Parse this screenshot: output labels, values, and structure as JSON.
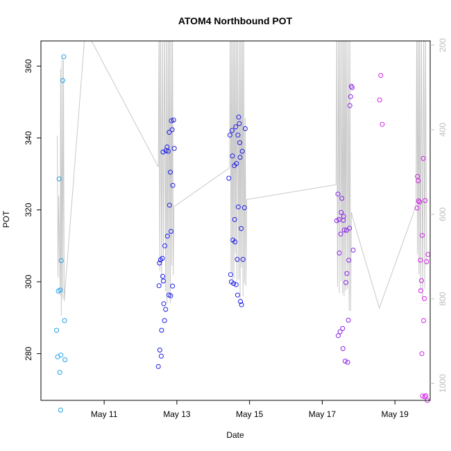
{
  "chart_data": {
    "type": "scatter",
    "title": "ATOM4 Northbound POT",
    "xlabel": "Date",
    "ylabel": "POT",
    "x_ticks": [
      "May 11",
      "May 13",
      "May 15",
      "May 17",
      "May 19"
    ],
    "y_ticks": [
      280,
      300,
      320,
      340,
      360
    ],
    "y2_ticks": [
      200,
      400,
      600,
      800,
      1000
    ],
    "xlim_days": [
      9.26,
      19.97
    ],
    "ylim": [
      267,
      367
    ],
    "y2lim": [
      1040,
      190
    ],
    "y2_reversed": true,
    "colors": {
      "cyan": "#1e9fe6",
      "blue": "#1a1ae6",
      "purple": "#8a22e6",
      "magenta": "#d21ee6",
      "line": "#c8c8c8"
    },
    "series": [
      {
        "color": "cyan",
        "points": [
          [
            9.69,
            286.5
          ],
          [
            9.72,
            279.1
          ],
          [
            9.74,
            297.4
          ],
          [
            9.76,
            328.6
          ],
          [
            9.78,
            274.8
          ],
          [
            9.8,
            264.3
          ],
          [
            9.81,
            279.6
          ],
          [
            9.82,
            305.9
          ],
          [
            9.79,
            297.7
          ],
          [
            9.86,
            356.0
          ],
          [
            9.89,
            362.6
          ],
          [
            9.91,
            289.2
          ],
          [
            9.92,
            278.3
          ]
        ]
      },
      {
        "color": "blue",
        "points": [
          [
            12.49,
            276.4
          ],
          [
            12.51,
            298.9
          ],
          [
            12.52,
            305.2
          ],
          [
            12.53,
            281.0
          ],
          [
            12.55,
            306.1
          ],
          [
            12.57,
            279.3
          ],
          [
            12.58,
            286.5
          ],
          [
            12.6,
            306.5
          ],
          [
            12.61,
            301.5
          ],
          [
            12.62,
            336.1
          ],
          [
            12.63,
            300.2
          ],
          [
            12.64,
            293.9
          ],
          [
            12.66,
            289.2
          ],
          [
            12.67,
            310.0
          ],
          [
            12.69,
            292.3
          ],
          [
            12.7,
            336.5
          ],
          [
            12.73,
            337.5
          ],
          [
            12.74,
            312.7
          ],
          [
            12.76,
            336.3
          ],
          [
            12.78,
            296.3
          ],
          [
            12.79,
            341.6
          ],
          [
            12.8,
            321.3
          ],
          [
            12.82,
            330.5
          ],
          [
            12.83,
            296.1
          ],
          [
            12.84,
            314.0
          ],
          [
            12.85,
            344.8
          ],
          [
            12.87,
            342.3
          ],
          [
            12.88,
            298.8
          ],
          [
            12.89,
            326.8
          ],
          [
            12.91,
            345.0
          ],
          [
            12.93,
            337.1
          ],
          [
            14.43,
            328.8
          ],
          [
            14.46,
            340.8
          ],
          [
            14.48,
            302.0
          ],
          [
            14.5,
            300.0
          ],
          [
            14.52,
            342.1
          ],
          [
            14.53,
            335.0
          ],
          [
            14.54,
            311.6
          ],
          [
            14.56,
            299.5
          ],
          [
            14.58,
            332.3
          ],
          [
            14.59,
            317.3
          ],
          [
            14.6,
            311.1
          ],
          [
            14.62,
            343.1
          ],
          [
            14.63,
            299.2
          ],
          [
            14.64,
            332.9
          ],
          [
            14.66,
            306.2
          ],
          [
            14.67,
            296.3
          ],
          [
            14.68,
            340.8
          ],
          [
            14.69,
            320.8
          ],
          [
            14.7,
            345.8
          ],
          [
            14.72,
            344.0
          ],
          [
            14.73,
            338.7
          ],
          [
            14.74,
            334.6
          ],
          [
            14.75,
            294.5
          ],
          [
            14.77,
            314.8
          ],
          [
            14.78,
            293.6
          ],
          [
            14.8,
            336.3
          ],
          [
            14.82,
            306.2
          ],
          [
            14.86,
            320.6
          ],
          [
            14.88,
            342.6
          ]
        ]
      },
      {
        "color": "purple",
        "points": [
          [
            17.4,
            317.0
          ],
          [
            17.43,
            324.4
          ],
          [
            17.44,
            285.0
          ],
          [
            17.46,
            317.3
          ],
          [
            17.47,
            308.0
          ],
          [
            17.49,
            286.1
          ],
          [
            17.51,
            313.3
          ],
          [
            17.52,
            319.3
          ],
          [
            17.54,
            323.2
          ],
          [
            17.56,
            287.0
          ],
          [
            17.57,
            281.4
          ],
          [
            17.58,
            317.1
          ],
          [
            17.59,
            318.2
          ],
          [
            17.61,
            314.4
          ],
          [
            17.63,
            277.9
          ],
          [
            17.65,
            299.8
          ],
          [
            17.67,
            314.3
          ],
          [
            17.68,
            302.3
          ],
          [
            17.7,
            277.6
          ],
          [
            17.72,
            289.3
          ],
          [
            17.73,
            306.0
          ],
          [
            17.75,
            314.9
          ],
          [
            17.76,
            349.0
          ],
          [
            17.78,
            351.5
          ],
          [
            17.8,
            354.4
          ],
          [
            17.82,
            354.0
          ],
          [
            17.85,
            308.8
          ]
        ]
      },
      {
        "color": "magenta",
        "points": [
          [
            18.58,
            350.6
          ],
          [
            18.61,
            357.4
          ],
          [
            18.65,
            343.8
          ],
          [
            19.61,
            320.5
          ],
          [
            19.62,
            329.3
          ],
          [
            19.64,
            328.1
          ],
          [
            19.65,
            322.5
          ],
          [
            19.68,
            322.2
          ],
          [
            19.7,
            306.0
          ],
          [
            19.71,
            297.5
          ],
          [
            19.73,
            300.3
          ],
          [
            19.74,
            280.0
          ],
          [
            19.75,
            312.9
          ],
          [
            19.76,
            268.2
          ],
          [
            19.78,
            334.3
          ],
          [
            19.79,
            289.2
          ],
          [
            19.81,
            295.3
          ],
          [
            19.82,
            268.0
          ],
          [
            19.83,
            322.6
          ],
          [
            19.85,
            268.3
          ],
          [
            19.87,
            305.6
          ],
          [
            19.89,
            267.0
          ],
          [
            19.91,
            307.6
          ]
        ]
      }
    ],
    "secondary_line": {
      "y2_values": [
        [
          9.71,
          414
        ],
        [
          9.73,
          750
        ],
        [
          9.75,
          556
        ],
        [
          9.77,
          675
        ],
        [
          9.79,
          792
        ],
        [
          9.8,
          256
        ],
        [
          9.82,
          840
        ],
        [
          9.84,
          227
        ],
        [
          9.86,
          800
        ],
        [
          9.88,
          235
        ],
        [
          9.9,
          805
        ],
        [
          10.48,
          162
        ],
        [
          12.49,
          488
        ],
        [
          12.51,
          152
        ],
        [
          12.53,
          734
        ],
        [
          12.55,
          152
        ],
        [
          12.58,
          767
        ],
        [
          12.6,
          152
        ],
        [
          12.63,
          702
        ],
        [
          12.66,
          152
        ],
        [
          12.69,
          782
        ],
        [
          12.71,
          152
        ],
        [
          12.73,
          811
        ],
        [
          12.76,
          152
        ],
        [
          12.78,
          787
        ],
        [
          12.8,
          152
        ],
        [
          12.82,
          811
        ],
        [
          12.84,
          152
        ],
        [
          12.86,
          721
        ],
        [
          12.88,
          152
        ],
        [
          12.9,
          744
        ],
        [
          12.92,
          582
        ],
        [
          14.45,
          490
        ],
        [
          14.47,
          152
        ],
        [
          14.49,
          735
        ],
        [
          14.51,
          152
        ],
        [
          14.53,
          753
        ],
        [
          14.55,
          152
        ],
        [
          14.57,
          752
        ],
        [
          14.59,
          152
        ],
        [
          14.61,
          693
        ],
        [
          14.63,
          152
        ],
        [
          14.65,
          758
        ],
        [
          14.67,
          152
        ],
        [
          14.7,
          754
        ],
        [
          14.72,
          152
        ],
        [
          14.74,
          801
        ],
        [
          14.76,
          152
        ],
        [
          14.78,
          726
        ],
        [
          14.8,
          152
        ],
        [
          14.82,
          794
        ],
        [
          14.84,
          152
        ],
        [
          14.86,
          764
        ],
        [
          14.88,
          373
        ],
        [
          14.9,
          770
        ],
        [
          14.92,
          565
        ],
        [
          17.38,
          530
        ],
        [
          17.4,
          152
        ],
        [
          17.42,
          771
        ],
        [
          17.45,
          152
        ],
        [
          17.47,
          787
        ],
        [
          17.49,
          152
        ],
        [
          17.52,
          758
        ],
        [
          17.54,
          152
        ],
        [
          17.56,
          788
        ],
        [
          17.58,
          152
        ],
        [
          17.6,
          794
        ],
        [
          17.62,
          152
        ],
        [
          17.64,
          781
        ],
        [
          17.66,
          152
        ],
        [
          17.69,
          776
        ],
        [
          17.71,
          152
        ],
        [
          17.74,
          828
        ],
        [
          17.76,
          152
        ],
        [
          17.78,
          829
        ],
        [
          17.8,
          595
        ],
        [
          17.86,
          615
        ],
        [
          18.57,
          822
        ],
        [
          19.58,
          580
        ],
        [
          19.6,
          152
        ],
        [
          19.62,
          694
        ],
        [
          19.64,
          152
        ],
        [
          19.66,
          742
        ],
        [
          19.68,
          152
        ],
        [
          19.7,
          780
        ],
        [
          19.73,
          152
        ],
        [
          19.76,
          801
        ],
        [
          19.79,
          152
        ],
        [
          19.82,
          777
        ],
        [
          19.84,
          152
        ],
        [
          19.87,
          720
        ]
      ]
    }
  }
}
